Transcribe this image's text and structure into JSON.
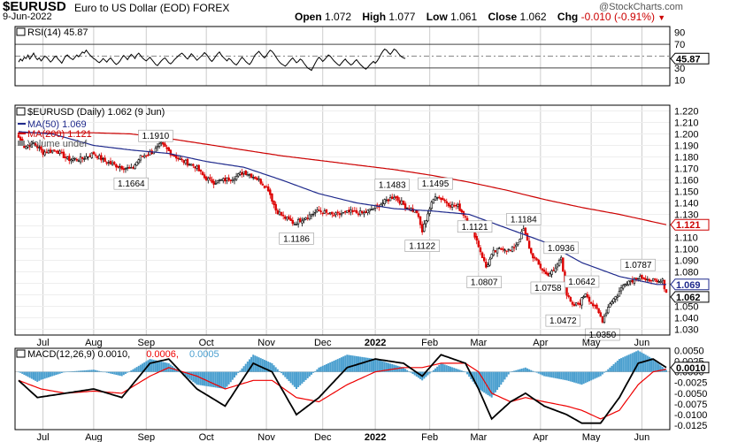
{
  "header": {
    "symbol": "$EURUSD",
    "description": "Euro to US Dollar (EOD) FOREX",
    "date": "9-Jun-2022",
    "open_label": "Open",
    "open": "1.072",
    "high_label": "High",
    "high": "1.077",
    "low_label": "Low",
    "low": "1.061",
    "close_label": "Close",
    "close": "1.062",
    "chg_label": "Chg",
    "chg": "-0.010 (-0.91%)",
    "watermark": "@StockCharts.com"
  },
  "colors": {
    "price_up": "#000000",
    "price_down": "#dd0000",
    "ma50": "#1f2a8c",
    "ma200": "#cc0000",
    "rsi": "#000000",
    "macd": "#000000",
    "signal": "#ee0000",
    "histogram": "#4a9fcf",
    "grid": "#cccccc"
  },
  "chart_data": [
    {
      "type": "line",
      "panel": "rsi",
      "legend": "RSI(14) 45.87",
      "y_ticks": [
        10,
        30,
        50,
        70,
        90
      ],
      "ylim": [
        0,
        100
      ],
      "reference_lines": [
        30,
        50,
        70
      ],
      "current_label": "45.87",
      "series": [
        {
          "name": "RSI(14)",
          "values": [
            40,
            45,
            42,
            48,
            46,
            52,
            45,
            50,
            55,
            48,
            44,
            47,
            42,
            46,
            50,
            48,
            44,
            40,
            43,
            48,
            50,
            45,
            42,
            38,
            44,
            50,
            52,
            48,
            46,
            44,
            48,
            52,
            49,
            53,
            57,
            55,
            60,
            56,
            52,
            49,
            46,
            44,
            41,
            39,
            42,
            46,
            43,
            40,
            44,
            47,
            43,
            39,
            36,
            38,
            42,
            47,
            51,
            48,
            44,
            49,
            53,
            50,
            46,
            52,
            55,
            51,
            47,
            44,
            42,
            45,
            48,
            44,
            40,
            36,
            34,
            38,
            42,
            45,
            47,
            43,
            39,
            37,
            40,
            44,
            47,
            50,
            53,
            55,
            52,
            48,
            45,
            49,
            54,
            51,
            47,
            43,
            46,
            49,
            52,
            56,
            53,
            49,
            44,
            41,
            45,
            50,
            54,
            57,
            52,
            48,
            45,
            42,
            46,
            44,
            40,
            37,
            35,
            39,
            44,
            48,
            45,
            41,
            38,
            36,
            40,
            46,
            52,
            55,
            58,
            54,
            50,
            47,
            51,
            56,
            60,
            58,
            54,
            49,
            44,
            40,
            37,
            35,
            33,
            36,
            40,
            44,
            47,
            43,
            39,
            41,
            45,
            43,
            38,
            34,
            30,
            28,
            26,
            32,
            38,
            44,
            48,
            45,
            41,
            44,
            48,
            52,
            50,
            46,
            42,
            39,
            36,
            34,
            38,
            42,
            45,
            41,
            38,
            35,
            37,
            41,
            44,
            40,
            36,
            33,
            30,
            28,
            31,
            35,
            38,
            41,
            38,
            42,
            47,
            53,
            58,
            62,
            60,
            56,
            53,
            57,
            62,
            60,
            56,
            52,
            49,
            47,
            46
          ]
        }
      ]
    },
    {
      "type": "candlestick",
      "panel": "price",
      "title": "$EURUSD (Daily) 1.062 (9 Jun)",
      "legend": [
        {
          "name": "MA(50)",
          "value": "1.069"
        },
        {
          "name": "MA(200)",
          "value": "1.121"
        },
        {
          "name": "Volume undef",
          "value": ""
        }
      ],
      "y_ticks": [
        "1.030",
        "1.040",
        "1.050",
        "1.060",
        "1.070",
        "1.080",
        "1.090",
        "1.100",
        "1.110",
        "1.120",
        "1.130",
        "1.140",
        "1.150",
        "1.160",
        "1.170",
        "1.180",
        "1.190",
        "1.200",
        "1.210",
        "1.220"
      ],
      "ylim": [
        1.025,
        1.225
      ],
      "last_value_labels": [
        {
          "value": "1.121",
          "series": "MA(200)"
        },
        {
          "value": "1.069",
          "series": "MA(50)"
        },
        {
          "value": "1.062",
          "series": "price"
        }
      ],
      "x_tick_labels": [
        "Jul",
        "Aug",
        "Sep",
        "Oct",
        "Nov",
        "Dec",
        "2022",
        "Feb",
        "Mar",
        "Apr",
        "May",
        "Jun"
      ],
      "x_tick_index": [
        13,
        40,
        68,
        100,
        132,
        162,
        190,
        219,
        245,
        278,
        305,
        332
      ],
      "annotations": [
        {
          "text": "1.1910",
          "index": 73,
          "value": 1.191,
          "pos": "above"
        },
        {
          "text": "1.1664",
          "index": 60,
          "value": 1.1664,
          "pos": "below"
        },
        {
          "text": "1.1186",
          "index": 148,
          "value": 1.1186,
          "pos": "below"
        },
        {
          "text": "1.1483",
          "index": 199,
          "value": 1.1483,
          "pos": "above"
        },
        {
          "text": "1.1495",
          "index": 222,
          "value": 1.1495,
          "pos": "above"
        },
        {
          "text": "1.1122",
          "index": 215,
          "value": 1.1122,
          "pos": "below"
        },
        {
          "text": "1.1121",
          "index": 243,
          "value": 1.1121,
          "pos": "above"
        },
        {
          "text": "1.1184",
          "index": 269,
          "value": 1.1184,
          "pos": "above"
        },
        {
          "text": "1.0807",
          "index": 248,
          "value": 1.0807,
          "pos": "below"
        },
        {
          "text": "1.0936",
          "index": 289,
          "value": 1.0936,
          "pos": "above"
        },
        {
          "text": "1.0758",
          "index": 282,
          "value": 1.0758,
          "pos": "below"
        },
        {
          "text": "1.0642",
          "index": 300,
          "value": 1.0642,
          "pos": "above"
        },
        {
          "text": "1.0787",
          "index": 330,
          "value": 1.0787,
          "pos": "above"
        },
        {
          "text": "1.0472",
          "index": 290,
          "value": 1.0472,
          "pos": "below"
        },
        {
          "text": "1.0350",
          "index": 311,
          "value": 1.035,
          "pos": "below"
        }
      ],
      "anchors": [
        [
          0,
          1.197
        ],
        [
          3,
          1.189
        ],
        [
          8,
          1.192
        ],
        [
          13,
          1.184
        ],
        [
          20,
          1.186
        ],
        [
          26,
          1.178
        ],
        [
          33,
          1.178
        ],
        [
          40,
          1.183
        ],
        [
          46,
          1.176
        ],
        [
          53,
          1.172
        ],
        [
          60,
          1.169
        ],
        [
          65,
          1.18
        ],
        [
          72,
          1.185
        ],
        [
          76,
          1.191
        ],
        [
          82,
          1.182
        ],
        [
          88,
          1.176
        ],
        [
          94,
          1.172
        ],
        [
          99,
          1.162
        ],
        [
          104,
          1.158
        ],
        [
          110,
          1.16
        ],
        [
          116,
          1.163
        ],
        [
          120,
          1.167
        ],
        [
          124,
          1.164
        ],
        [
          128,
          1.16
        ],
        [
          133,
          1.152
        ],
        [
          137,
          1.134
        ],
        [
          141,
          1.128
        ],
        [
          147,
          1.122
        ],
        [
          152,
          1.127
        ],
        [
          160,
          1.133
        ],
        [
          168,
          1.129
        ],
        [
          176,
          1.132
        ],
        [
          184,
          1.131
        ],
        [
          190,
          1.136
        ],
        [
          196,
          1.142
        ],
        [
          200,
          1.146
        ],
        [
          206,
          1.137
        ],
        [
          212,
          1.132
        ],
        [
          215,
          1.115
        ],
        [
          218,
          1.131
        ],
        [
          222,
          1.147
        ],
        [
          226,
          1.143
        ],
        [
          230,
          1.138
        ],
        [
          234,
          1.137
        ],
        [
          238,
          1.128
        ],
        [
          243,
          1.112
        ],
        [
          246,
          1.098
        ],
        [
          249,
          1.084
        ],
        [
          253,
          1.097
        ],
        [
          258,
          1.101
        ],
        [
          262,
          1.098
        ],
        [
          266,
          1.106
        ],
        [
          269,
          1.117
        ],
        [
          273,
          1.096
        ],
        [
          277,
          1.086
        ],
        [
          281,
          1.078
        ],
        [
          285,
          1.08
        ],
        [
          289,
          1.093
        ],
        [
          292,
          1.06
        ],
        [
          295,
          1.05
        ],
        [
          299,
          1.053
        ],
        [
          302,
          1.062
        ],
        [
          305,
          1.053
        ],
        [
          308,
          1.047
        ],
        [
          311,
          1.038
        ],
        [
          315,
          1.053
        ],
        [
          319,
          1.06
        ],
        [
          323,
          1.071
        ],
        [
          327,
          1.073
        ],
        [
          331,
          1.077
        ],
        [
          334,
          1.071
        ],
        [
          337,
          1.074
        ],
        [
          340,
          1.07
        ],
        [
          343,
          1.072
        ],
        [
          345,
          1.062
        ]
      ],
      "series": [
        {
          "name": "MA(50)",
          "points": [
            [
              0,
              1.202
            ],
            [
              18,
              1.2
            ],
            [
              40,
              1.19
            ],
            [
              60,
              1.186
            ],
            [
              80,
              1.183
            ],
            [
              100,
              1.176
            ],
            [
              120,
              1.171
            ],
            [
              140,
              1.16
            ],
            [
              160,
              1.148
            ],
            [
              180,
              1.14
            ],
            [
              200,
              1.135
            ],
            [
              220,
              1.133
            ],
            [
              240,
              1.13
            ],
            [
              260,
              1.118
            ],
            [
              280,
              1.106
            ],
            [
              300,
              1.088
            ],
            [
              320,
              1.076
            ],
            [
              340,
              1.069
            ],
            [
              345,
              1.069
            ]
          ]
        },
        {
          "name": "MA(200)",
          "points": [
            [
              0,
              1.201
            ],
            [
              20,
              1.201
            ],
            [
              40,
              1.201
            ],
            [
              60,
              1.2
            ],
            [
              80,
              1.196
            ],
            [
              100,
              1.191
            ],
            [
              120,
              1.186
            ],
            [
              140,
              1.181
            ],
            [
              160,
              1.177
            ],
            [
              180,
              1.173
            ],
            [
              200,
              1.169
            ],
            [
              220,
              1.164
            ],
            [
              240,
              1.158
            ],
            [
              260,
              1.151
            ],
            [
              280,
              1.143
            ],
            [
              300,
              1.136
            ],
            [
              320,
              1.13
            ],
            [
              345,
              1.121
            ]
          ]
        }
      ]
    },
    {
      "type": "line",
      "panel": "macd",
      "legend": [
        {
          "name": "MACD(12,26,9)",
          "value": "0.0010"
        },
        {
          "name": "signal",
          "value": "0.0006"
        },
        {
          "name": "histogram",
          "value": "0.0005"
        }
      ],
      "y_ticks": [
        "0.0050",
        "0.0025",
        "0.0000",
        "-0.0025",
        "-0.0050",
        "-0.0075",
        "-0.0100",
        "-0.0125"
      ],
      "ylim": [
        -0.0135,
        0.0055
      ],
      "current_label": "0.0010",
      "x_tick_labels": [
        "Jul",
        "Aug",
        "Sep",
        "Oct",
        "Nov",
        "Dec",
        "2022",
        "Feb",
        "Mar",
        "Apr",
        "May",
        "Jun"
      ],
      "series": [
        {
          "name": "MACD",
          "points": [
            [
              0,
              -0.002
            ],
            [
              10,
              -0.006
            ],
            [
              25,
              -0.005
            ],
            [
              40,
              -0.004
            ],
            [
              55,
              -0.006
            ],
            [
              70,
              0.002
            ],
            [
              80,
              0.003
            ],
            [
              95,
              -0.004
            ],
            [
              110,
              -0.008
            ],
            [
              125,
              0.002
            ],
            [
              135,
              0.0
            ],
            [
              148,
              -0.01
            ],
            [
              160,
              -0.006
            ],
            [
              175,
              0.001
            ],
            [
              190,
              0.003
            ],
            [
              205,
              0.002
            ],
            [
              215,
              -0.001
            ],
            [
              225,
              0.004
            ],
            [
              238,
              0.002
            ],
            [
              245,
              -0.004
            ],
            [
              252,
              -0.011
            ],
            [
              262,
              -0.007
            ],
            [
              270,
              -0.005
            ],
            [
              280,
              -0.008
            ],
            [
              292,
              -0.01
            ],
            [
              300,
              -0.012
            ],
            [
              310,
              -0.012
            ],
            [
              320,
              -0.006
            ],
            [
              330,
              0.002
            ],
            [
              338,
              0.003
            ],
            [
              345,
              0.001
            ]
          ]
        },
        {
          "name": "signal",
          "points": [
            [
              0,
              -0.002
            ],
            [
              12,
              -0.004
            ],
            [
              25,
              -0.005
            ],
            [
              40,
              -0.0045
            ],
            [
              55,
              -0.005
            ],
            [
              70,
              -0.001
            ],
            [
              80,
              0.001
            ],
            [
              95,
              -0.001
            ],
            [
              110,
              -0.004
            ],
            [
              125,
              -0.002
            ],
            [
              135,
              -0.002
            ],
            [
              148,
              -0.006
            ],
            [
              160,
              -0.007
            ],
            [
              175,
              -0.003
            ],
            [
              190,
              0.0
            ],
            [
              205,
              0.001
            ],
            [
              215,
              0.001
            ],
            [
              225,
              0.002
            ],
            [
              238,
              0.002
            ],
            [
              245,
              0.0
            ],
            [
              252,
              -0.005
            ],
            [
              262,
              -0.007
            ],
            [
              270,
              -0.006
            ],
            [
              280,
              -0.007
            ],
            [
              292,
              -0.008
            ],
            [
              300,
              -0.009
            ],
            [
              310,
              -0.011
            ],
            [
              320,
              -0.009
            ],
            [
              330,
              -0.003
            ],
            [
              338,
              0.0
            ],
            [
              345,
              0.0006
            ]
          ]
        }
      ]
    }
  ]
}
